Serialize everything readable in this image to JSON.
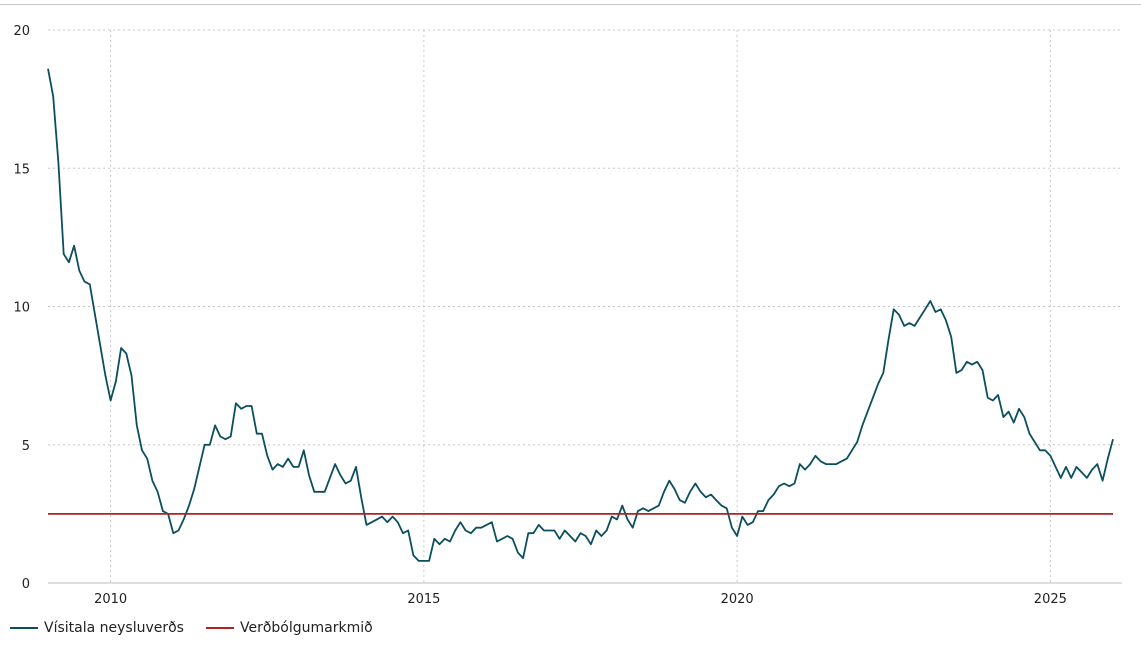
{
  "chart_data": {
    "type": "line",
    "title": "",
    "xlabel": "",
    "ylabel": "",
    "xlim": [
      "2009-01",
      "2026-01"
    ],
    "ylim": [
      0,
      20
    ],
    "yticks": [
      0,
      5,
      10,
      15,
      20
    ],
    "ytick_labels": [
      "0",
      "5",
      "10",
      "15",
      "20"
    ],
    "xticks": [
      "2010-01",
      "2015-01",
      "2020-01",
      "2025-01"
    ],
    "xtick_labels": [
      "2010",
      "2015",
      "2020",
      "2025"
    ],
    "grid": true,
    "legend_position": "bottom-left",
    "series": [
      {
        "name": "Vísitala neysluverðs",
        "color": "#0b4f5e",
        "points": [
          [
            "2009-01",
            18.6
          ],
          [
            "2009-02",
            17.6
          ],
          [
            "2009-03",
            15.2
          ],
          [
            "2009-04",
            11.9
          ],
          [
            "2009-05",
            11.6
          ],
          [
            "2009-06",
            12.2
          ],
          [
            "2009-07",
            11.3
          ],
          [
            "2009-08",
            10.9
          ],
          [
            "2009-09",
            10.8
          ],
          [
            "2009-10",
            9.7
          ],
          [
            "2009-11",
            8.6
          ],
          [
            "2009-12",
            7.5
          ],
          [
            "2010-01",
            6.6
          ],
          [
            "2010-02",
            7.3
          ],
          [
            "2010-03",
            8.5
          ],
          [
            "2010-04",
            8.3
          ],
          [
            "2010-05",
            7.5
          ],
          [
            "2010-06",
            5.7
          ],
          [
            "2010-07",
            4.8
          ],
          [
            "2010-08",
            4.5
          ],
          [
            "2010-09",
            3.7
          ],
          [
            "2010-10",
            3.3
          ],
          [
            "2010-11",
            2.6
          ],
          [
            "2010-12",
            2.5
          ],
          [
            "2011-01",
            1.8
          ],
          [
            "2011-02",
            1.9
          ],
          [
            "2011-03",
            2.3
          ],
          [
            "2011-04",
            2.8
          ],
          [
            "2011-05",
            3.4
          ],
          [
            "2011-06",
            4.2
          ],
          [
            "2011-07",
            5.0
          ],
          [
            "2011-08",
            5.0
          ],
          [
            "2011-09",
            5.7
          ],
          [
            "2011-10",
            5.3
          ],
          [
            "2011-11",
            5.2
          ],
          [
            "2011-12",
            5.3
          ],
          [
            "2012-01",
            6.5
          ],
          [
            "2012-02",
            6.3
          ],
          [
            "2012-03",
            6.4
          ],
          [
            "2012-04",
            6.4
          ],
          [
            "2012-05",
            5.4
          ],
          [
            "2012-06",
            5.4
          ],
          [
            "2012-07",
            4.6
          ],
          [
            "2012-08",
            4.1
          ],
          [
            "2012-09",
            4.3
          ],
          [
            "2012-10",
            4.2
          ],
          [
            "2012-11",
            4.5
          ],
          [
            "2012-12",
            4.2
          ],
          [
            "2013-01",
            4.2
          ],
          [
            "2013-02",
            4.8
          ],
          [
            "2013-03",
            3.9
          ],
          [
            "2013-04",
            3.3
          ],
          [
            "2013-05",
            3.3
          ],
          [
            "2013-06",
            3.3
          ],
          [
            "2013-07",
            3.8
          ],
          [
            "2013-08",
            4.3
          ],
          [
            "2013-09",
            3.9
          ],
          [
            "2013-10",
            3.6
          ],
          [
            "2013-11",
            3.7
          ],
          [
            "2013-12",
            4.2
          ],
          [
            "2014-01",
            3.1
          ],
          [
            "2014-02",
            2.1
          ],
          [
            "2014-03",
            2.2
          ],
          [
            "2014-04",
            2.3
          ],
          [
            "2014-05",
            2.4
          ],
          [
            "2014-06",
            2.2
          ],
          [
            "2014-07",
            2.4
          ],
          [
            "2014-08",
            2.2
          ],
          [
            "2014-09",
            1.8
          ],
          [
            "2014-10",
            1.9
          ],
          [
            "2014-11",
            1.0
          ],
          [
            "2014-12",
            0.8
          ],
          [
            "2015-01",
            0.8
          ],
          [
            "2015-02",
            0.8
          ],
          [
            "2015-03",
            1.6
          ],
          [
            "2015-04",
            1.4
          ],
          [
            "2015-05",
            1.6
          ],
          [
            "2015-06",
            1.5
          ],
          [
            "2015-07",
            1.9
          ],
          [
            "2015-08",
            2.2
          ],
          [
            "2015-09",
            1.9
          ],
          [
            "2015-10",
            1.8
          ],
          [
            "2015-11",
            2.0
          ],
          [
            "2015-12",
            2.0
          ],
          [
            "2016-01",
            2.1
          ],
          [
            "2016-02",
            2.2
          ],
          [
            "2016-03",
            1.5
          ],
          [
            "2016-04",
            1.6
          ],
          [
            "2016-05",
            1.7
          ],
          [
            "2016-06",
            1.6
          ],
          [
            "2016-07",
            1.1
          ],
          [
            "2016-08",
            0.9
          ],
          [
            "2016-09",
            1.8
          ],
          [
            "2016-10",
            1.8
          ],
          [
            "2016-11",
            2.1
          ],
          [
            "2016-12",
            1.9
          ],
          [
            "2017-01",
            1.9
          ],
          [
            "2017-02",
            1.9
          ],
          [
            "2017-03",
            1.6
          ],
          [
            "2017-04",
            1.9
          ],
          [
            "2017-05",
            1.7
          ],
          [
            "2017-06",
            1.5
          ],
          [
            "2017-07",
            1.8
          ],
          [
            "2017-08",
            1.7
          ],
          [
            "2017-09",
            1.4
          ],
          [
            "2017-10",
            1.9
          ],
          [
            "2017-11",
            1.7
          ],
          [
            "2017-12",
            1.9
          ],
          [
            "2018-01",
            2.4
          ],
          [
            "2018-02",
            2.3
          ],
          [
            "2018-03",
            2.8
          ],
          [
            "2018-04",
            2.3
          ],
          [
            "2018-05",
            2.0
          ],
          [
            "2018-06",
            2.6
          ],
          [
            "2018-07",
            2.7
          ],
          [
            "2018-08",
            2.6
          ],
          [
            "2018-09",
            2.7
          ],
          [
            "2018-10",
            2.8
          ],
          [
            "2018-11",
            3.3
          ],
          [
            "2018-12",
            3.7
          ],
          [
            "2019-01",
            3.4
          ],
          [
            "2019-02",
            3.0
          ],
          [
            "2019-03",
            2.9
          ],
          [
            "2019-04",
            3.3
          ],
          [
            "2019-05",
            3.6
          ],
          [
            "2019-06",
            3.3
          ],
          [
            "2019-07",
            3.1
          ],
          [
            "2019-08",
            3.2
          ],
          [
            "2019-09",
            3.0
          ],
          [
            "2019-10",
            2.8
          ],
          [
            "2019-11",
            2.7
          ],
          [
            "2019-12",
            2.0
          ],
          [
            "2020-01",
            1.7
          ],
          [
            "2020-02",
            2.4
          ],
          [
            "2020-03",
            2.1
          ],
          [
            "2020-04",
            2.2
          ],
          [
            "2020-05",
            2.6
          ],
          [
            "2020-06",
            2.6
          ],
          [
            "2020-07",
            3.0
          ],
          [
            "2020-08",
            3.2
          ],
          [
            "2020-09",
            3.5
          ],
          [
            "2020-10",
            3.6
          ],
          [
            "2020-11",
            3.5
          ],
          [
            "2020-12",
            3.6
          ],
          [
            "2021-01",
            4.3
          ],
          [
            "2021-02",
            4.1
          ],
          [
            "2021-03",
            4.3
          ],
          [
            "2021-04",
            4.6
          ],
          [
            "2021-05",
            4.4
          ],
          [
            "2021-06",
            4.3
          ],
          [
            "2021-07",
            4.3
          ],
          [
            "2021-08",
            4.3
          ],
          [
            "2021-09",
            4.4
          ],
          [
            "2021-10",
            4.5
          ],
          [
            "2021-11",
            4.8
          ],
          [
            "2021-12",
            5.1
          ],
          [
            "2022-01",
            5.7
          ],
          [
            "2022-02",
            6.2
          ],
          [
            "2022-03",
            6.7
          ],
          [
            "2022-04",
            7.2
          ],
          [
            "2022-05",
            7.6
          ],
          [
            "2022-06",
            8.8
          ],
          [
            "2022-07",
            9.9
          ],
          [
            "2022-08",
            9.7
          ],
          [
            "2022-09",
            9.3
          ],
          [
            "2022-10",
            9.4
          ],
          [
            "2022-11",
            9.3
          ],
          [
            "2022-12",
            9.6
          ],
          [
            "2023-01",
            9.9
          ],
          [
            "2023-02",
            10.2
          ],
          [
            "2023-03",
            9.8
          ],
          [
            "2023-04",
            9.9
          ],
          [
            "2023-05",
            9.5
          ],
          [
            "2023-06",
            8.9
          ],
          [
            "2023-07",
            7.6
          ],
          [
            "2023-08",
            7.7
          ],
          [
            "2023-09",
            8.0
          ],
          [
            "2023-10",
            7.9
          ],
          [
            "2023-11",
            8.0
          ],
          [
            "2023-12",
            7.7
          ],
          [
            "2024-01",
            6.7
          ],
          [
            "2024-02",
            6.6
          ],
          [
            "2024-03",
            6.8
          ],
          [
            "2024-04",
            6.0
          ],
          [
            "2024-05",
            6.2
          ],
          [
            "2024-06",
            5.8
          ],
          [
            "2024-07",
            6.3
          ],
          [
            "2024-08",
            6.0
          ],
          [
            "2024-09",
            5.4
          ],
          [
            "2024-10",
            5.1
          ],
          [
            "2024-11",
            4.8
          ],
          [
            "2024-12",
            4.8
          ],
          [
            "2025-01",
            4.6
          ],
          [
            "2025-02",
            4.2
          ],
          [
            "2025-03",
            3.8
          ],
          [
            "2025-04",
            4.2
          ],
          [
            "2025-05",
            3.8
          ],
          [
            "2025-06",
            4.2
          ],
          [
            "2025-07",
            4.0
          ],
          [
            "2025-08",
            3.8
          ],
          [
            "2025-09",
            4.1
          ],
          [
            "2025-10",
            4.3
          ],
          [
            "2025-11",
            3.7
          ],
          [
            "2025-12",
            4.5
          ],
          [
            "2026-01",
            5.2
          ]
        ]
      },
      {
        "name": "Verðbólgumarkmið",
        "color": "#b22222",
        "points": [
          [
            "2009-01",
            2.5
          ],
          [
            "2026-01",
            2.5
          ]
        ]
      }
    ]
  }
}
